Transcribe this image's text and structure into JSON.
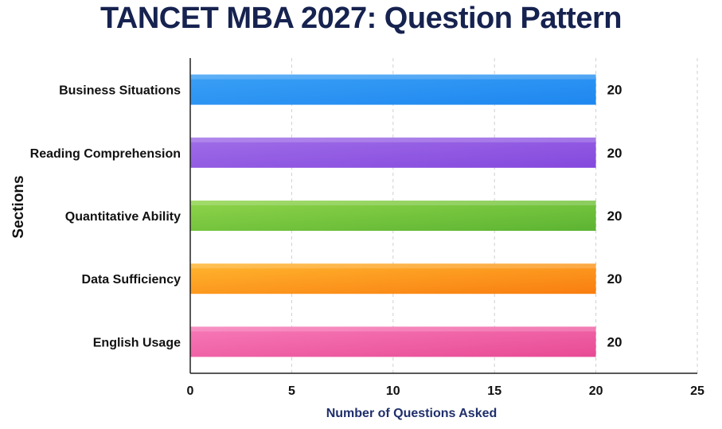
{
  "chart_data": {
    "type": "bar",
    "orientation": "horizontal",
    "title": "TANCET MBA 2027: Question Pattern",
    "xlabel": "Number of Questions Asked",
    "ylabel": "Sections",
    "categories": [
      "Business Situations",
      "Reading Comprehension",
      "Quantitative Ability",
      "Data Sufficiency",
      "English Usage"
    ],
    "values": [
      20,
      20,
      20,
      20,
      20
    ],
    "value_labels": [
      "20",
      "20",
      "20",
      "20",
      "20"
    ],
    "xlim": [
      0,
      25
    ],
    "xticks": [
      0,
      5,
      10,
      15,
      20,
      25
    ],
    "xtick_labels": [
      "0",
      "5",
      "10",
      "15",
      "20",
      "25"
    ],
    "grid": "vertical dashed",
    "bar_colors": [
      [
        "#3aa0f5",
        "#1e87f0"
      ],
      [
        "#a06ee8",
        "#8448dd"
      ],
      [
        "#8fd44a",
        "#5cb432"
      ],
      [
        "#ffb52e",
        "#f97d10"
      ],
      [
        "#f77ab8",
        "#e84a94"
      ]
    ]
  }
}
